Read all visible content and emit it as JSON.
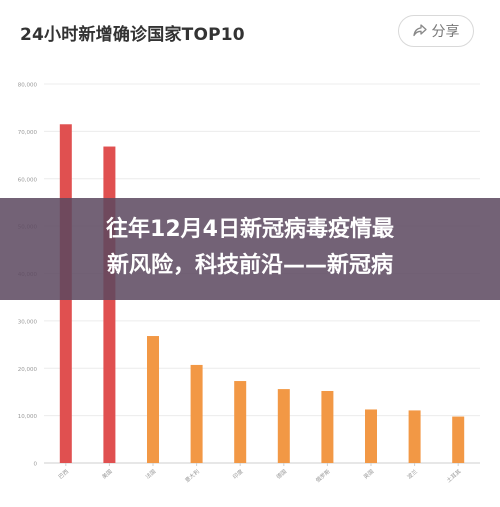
{
  "header": {
    "title": "24小时新增确诊国家TOP10",
    "share_label": "分享",
    "share_icon": "share-icon"
  },
  "overlay": {
    "line1": "往年12月4日新冠病毒疫情最",
    "line2": "新风险，科技前沿——新冠病"
  },
  "colors": {
    "bar_top": "#e05050",
    "bar_rest": "#f29845",
    "overlay": "#5c4860"
  },
  "chart_data": {
    "type": "bar",
    "title": "24小时新增确诊国家TOP10",
    "categories": [
      "巴西",
      "美国",
      "法国",
      "意大利",
      "印度",
      "德国",
      "俄罗斯",
      "英国",
      "波兰",
      "土耳其"
    ],
    "values": [
      71500,
      66800,
      26800,
      20700,
      17300,
      15600,
      15200,
      11300,
      11100,
      9800
    ],
    "ylim": [
      0,
      80000
    ],
    "y_ticks": [
      0,
      10000,
      20000,
      30000,
      40000,
      50000,
      60000,
      70000,
      80000
    ],
    "y_tick_labels": [
      "0",
      "10,000",
      "20,000",
      "30,000",
      "40,000",
      "50,000",
      "60,000",
      "70,000",
      "80,000"
    ],
    "grid": true,
    "xlabel": "",
    "ylabel": ""
  }
}
